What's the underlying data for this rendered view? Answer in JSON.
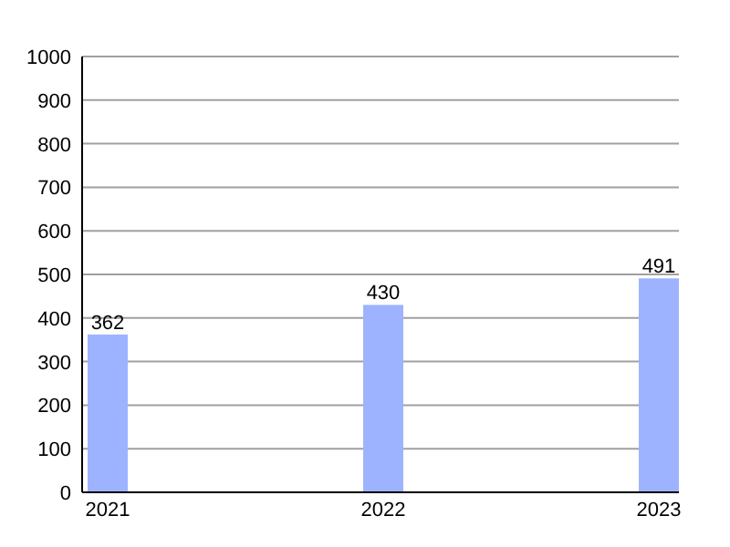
{
  "chart_data": {
    "type": "bar",
    "categories": [
      "2021",
      "2022",
      "2023"
    ],
    "values": [
      362,
      430,
      491
    ],
    "color": "#9eb3ff",
    "ylim": [
      0,
      1000
    ],
    "yticks": [
      0,
      100,
      200,
      300,
      400,
      500,
      600,
      700,
      800,
      900,
      1000
    ],
    "grid": "y",
    "data_labels": true
  }
}
